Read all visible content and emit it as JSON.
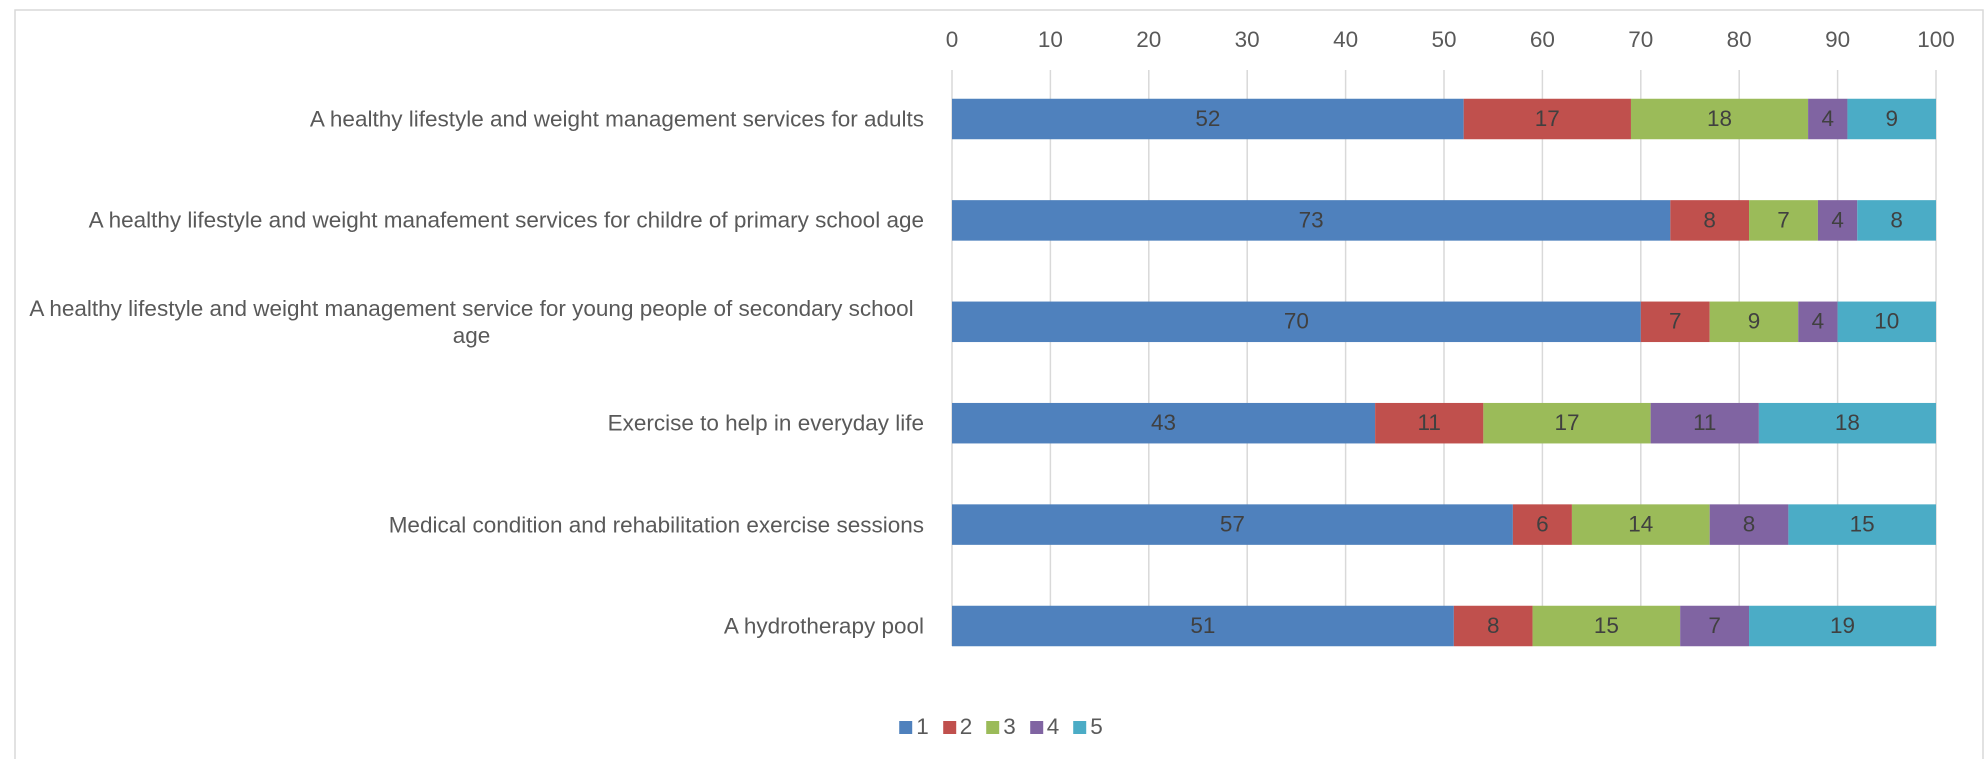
{
  "chart_data": {
    "type": "stacked_barh",
    "categories": [
      "A healthy lifestyle and weight management services for adults",
      "A healthy lifestyle and weight manafement services for childre of primary school age",
      "A healthy lifestyle and weight management service for young people of secondary school age",
      "Exercise to help in everyday life",
      "Medical condition and rehabilitation exercise sessions",
      "A hydrotherapy pool"
    ],
    "series": [
      {
        "name": "1",
        "color": "#4f81bd",
        "values": [
          52,
          73,
          70,
          43,
          57,
          51
        ]
      },
      {
        "name": "2",
        "color": "#c0504d",
        "values": [
          17,
          8,
          7,
          11,
          6,
          8
        ]
      },
      {
        "name": "3",
        "color": "#9bbb59",
        "values": [
          18,
          7,
          9,
          17,
          14,
          15
        ]
      },
      {
        "name": "4",
        "color": "#8064a2",
        "values": [
          4,
          4,
          4,
          11,
          8,
          7
        ]
      },
      {
        "name": "5",
        "color": "#4bacc6",
        "values": [
          9,
          8,
          10,
          18,
          15,
          19
        ]
      }
    ],
    "xlim": [
      0,
      100
    ],
    "xticks": [
      0,
      10,
      20,
      30,
      40,
      50,
      60,
      70,
      80,
      90,
      100
    ],
    "grid": true,
    "legend": "bottom"
  }
}
